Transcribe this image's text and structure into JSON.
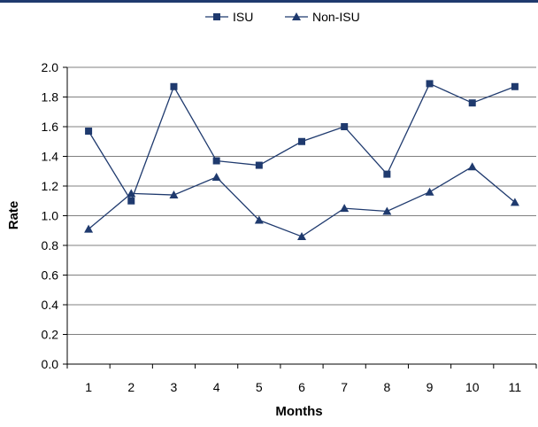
{
  "chart_data": {
    "type": "line",
    "title": "",
    "xlabel": "Months",
    "ylabel": "Rate",
    "x": [
      1,
      2,
      3,
      4,
      5,
      6,
      7,
      8,
      9,
      10,
      11
    ],
    "ylim": [
      0,
      2.0
    ],
    "yticks": [
      "0.0",
      "0.2",
      "0.4",
      "0.6",
      "0.8",
      "1.0",
      "1.2",
      "1.4",
      "1.6",
      "1.8",
      "2.0"
    ],
    "grid": true,
    "legend": "top",
    "series": [
      {
        "name": "ISU",
        "marker": "square",
        "color": "#1f3a6e",
        "values": [
          1.57,
          1.1,
          1.87,
          1.37,
          1.34,
          1.5,
          1.6,
          1.28,
          1.89,
          1.76,
          1.87
        ]
      },
      {
        "name": "Non-ISU",
        "marker": "triangle",
        "color": "#1f3a6e",
        "values": [
          0.91,
          1.15,
          1.14,
          1.26,
          0.97,
          0.86,
          1.05,
          1.03,
          1.16,
          1.33,
          1.09
        ]
      }
    ]
  }
}
